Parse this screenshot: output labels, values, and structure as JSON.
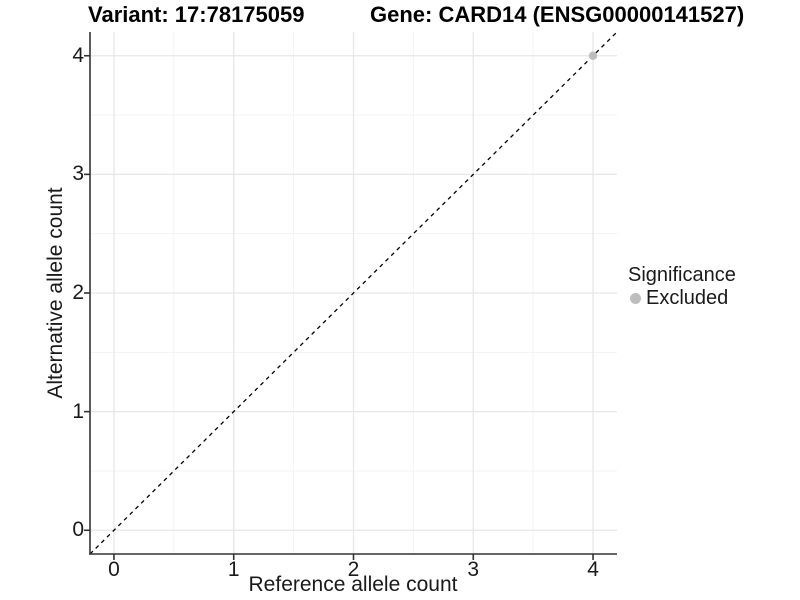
{
  "chart_data": {
    "type": "scatter",
    "titles": {
      "left": "Variant: 17:78175059",
      "right": "Gene: CARD14 (ENSG00000141527)"
    },
    "xlabel": "Reference allele count",
    "ylabel": "Alternative allele count",
    "xlim": [
      -0.2,
      4.2
    ],
    "ylim": [
      -0.2,
      4.2
    ],
    "xticks": [
      0,
      1,
      2,
      3,
      4
    ],
    "yticks": [
      0,
      1,
      2,
      3,
      4
    ],
    "minor_ticks_x": [
      0.5,
      1.5,
      2.5,
      3.5
    ],
    "minor_ticks_y": [
      0.5,
      1.5,
      2.5,
      3.5
    ],
    "grid": "major+minor",
    "identity_line": {
      "style": "dashed",
      "color": "#000000",
      "slope": 1,
      "intercept": 0
    },
    "series": [
      {
        "name": "Excluded",
        "color": "#bdbdbd",
        "points": [
          {
            "x": 4,
            "y": 4
          }
        ]
      }
    ],
    "legend": {
      "title": "Significance",
      "position": "right",
      "items": [
        {
          "label": "Excluded",
          "color": "#bdbdbd"
        }
      ]
    },
    "colors": {
      "axis_line": "#333333",
      "tick_mark": "#333333",
      "grid_major": "#e7e7e7",
      "grid_minor": "#f3f3f3",
      "text": "#1a1a1a",
      "background": "#ffffff"
    }
  }
}
